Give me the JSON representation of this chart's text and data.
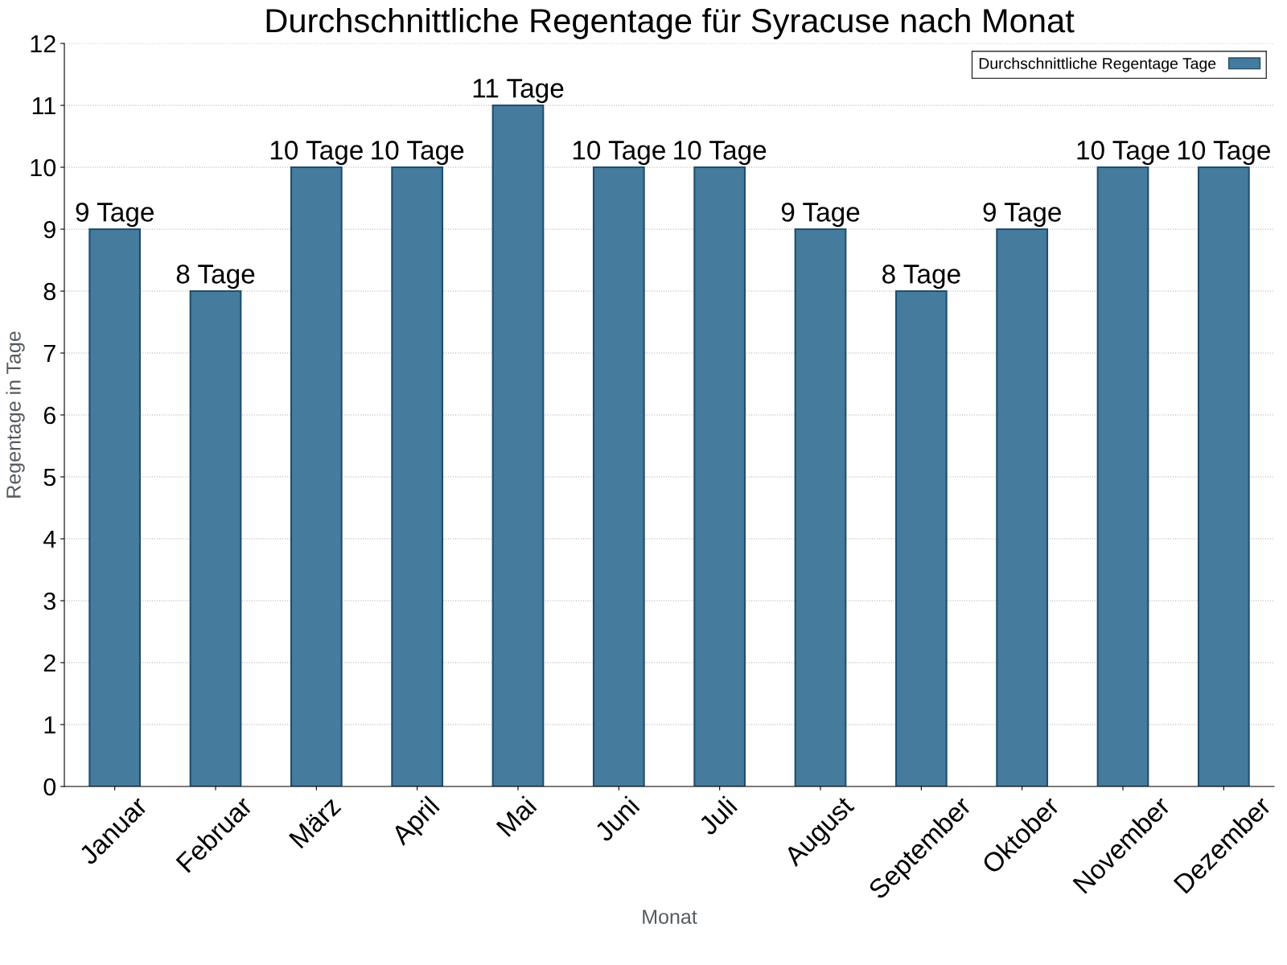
{
  "chart_data": {
    "type": "bar",
    "title": "Durchschnittliche Regentage für Syracuse nach Monat",
    "xlabel": "Monat",
    "ylabel": "Regentage in Tage",
    "categories": [
      "Januar",
      "Februar",
      "März",
      "April",
      "Mai",
      "Juni",
      "Juli",
      "August",
      "September",
      "Oktober",
      "November",
      "Dezember"
    ],
    "series": [
      {
        "name": "Durchschnittliche Regentage Tage",
        "color": "#457b9d",
        "values": [
          9,
          8,
          10,
          10,
          11,
          10,
          10,
          9,
          8,
          9,
          10,
          10
        ],
        "value_labels": [
          "9 Tage",
          "8 Tage",
          "10 Tage",
          "10 Tage",
          "11 Tage",
          "10 Tage",
          "10 Tage",
          "9 Tage",
          "8 Tage",
          "9 Tage",
          "10 Tage",
          "10 Tage"
        ]
      }
    ],
    "ylim": [
      0,
      12
    ],
    "yticks": [
      0,
      1,
      2,
      3,
      4,
      5,
      6,
      7,
      8,
      9,
      10,
      11,
      12
    ],
    "grid": "y",
    "legend": "top right"
  }
}
